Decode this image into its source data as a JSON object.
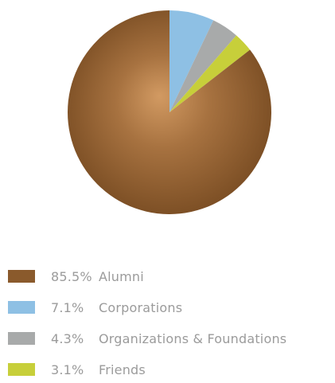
{
  "chart_data": {
    "type": "pie",
    "title": "",
    "slices": [
      {
        "percent_label": "85.5%",
        "label": "Alumni",
        "value": 85.5,
        "color": "#8a5a2c"
      },
      {
        "percent_label": "7.1%",
        "label": "Corporations",
        "value": 7.1,
        "color": "#8ec0e4"
      },
      {
        "percent_label": "4.3%",
        "label": "Organizations & Foundations",
        "value": 4.3,
        "color": "#a8aaaa"
      },
      {
        "percent_label": "3.1%",
        "label": "Friends",
        "value": 3.1,
        "color": "#c7cf3a"
      }
    ],
    "legend_placement": "bottom",
    "text_color": "#9b9b9b"
  }
}
